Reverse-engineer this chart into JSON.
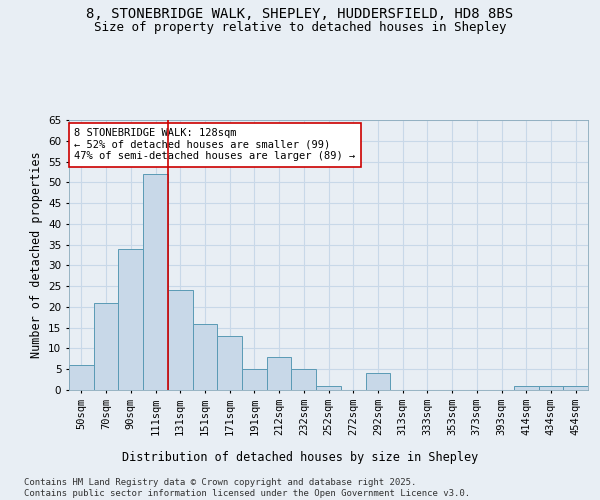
{
  "title_line1": "8, STONEBRIDGE WALK, SHEPLEY, HUDDERSFIELD, HD8 8BS",
  "title_line2": "Size of property relative to detached houses in Shepley",
  "xlabel": "Distribution of detached houses by size in Shepley",
  "ylabel": "Number of detached properties",
  "bar_color": "#c8d8e8",
  "bar_edge_color": "#5a9ab5",
  "grid_color": "#c8d8e8",
  "background_color": "#e8eef4",
  "vline_color": "#cc0000",
  "vline_x": 3.5,
  "annotation_text": "8 STONEBRIDGE WALK: 128sqm\n← 52% of detached houses are smaller (99)\n47% of semi-detached houses are larger (89) →",
  "annotation_box_facecolor": "#ffffff",
  "annotation_box_edgecolor": "#cc0000",
  "categories": [
    "50sqm",
    "70sqm",
    "90sqm",
    "111sqm",
    "131sqm",
    "151sqm",
    "171sqm",
    "191sqm",
    "212sqm",
    "232sqm",
    "252sqm",
    "272sqm",
    "292sqm",
    "313sqm",
    "333sqm",
    "353sqm",
    "373sqm",
    "393sqm",
    "414sqm",
    "434sqm",
    "454sqm"
  ],
  "values": [
    6,
    21,
    34,
    52,
    24,
    16,
    13,
    5,
    8,
    5,
    1,
    0,
    4,
    0,
    0,
    0,
    0,
    0,
    1,
    1,
    1
  ],
  "ylim": [
    0,
    65
  ],
  "yticks": [
    0,
    5,
    10,
    15,
    20,
    25,
    30,
    35,
    40,
    45,
    50,
    55,
    60,
    65
  ],
  "footer_text": "Contains HM Land Registry data © Crown copyright and database right 2025.\nContains public sector information licensed under the Open Government Licence v3.0.",
  "title_fontsize": 10,
  "subtitle_fontsize": 9,
  "axis_label_fontsize": 8.5,
  "tick_fontsize": 7.5,
  "annotation_fontsize": 7.5,
  "footer_fontsize": 6.5
}
